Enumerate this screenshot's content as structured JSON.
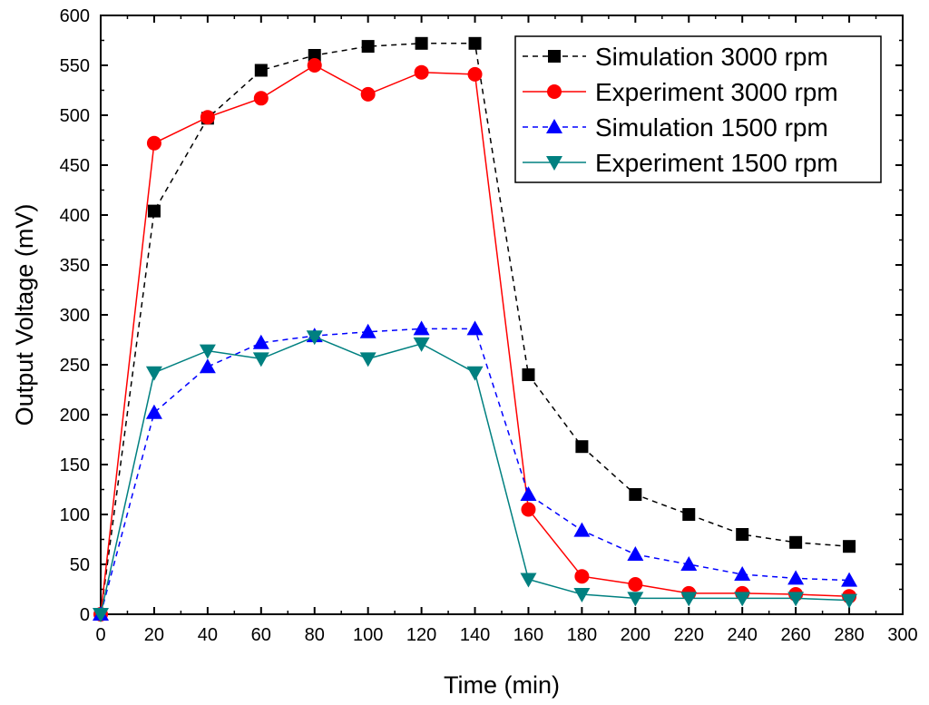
{
  "chart_data": {
    "type": "line",
    "title": "",
    "xlabel": "Time (min)",
    "ylabel": "Output Voltage (mV)",
    "xlim": [
      0,
      300
    ],
    "ylim": [
      0,
      600
    ],
    "xticks": [
      "0",
      "20",
      "40",
      "60",
      "80",
      "100",
      "120",
      "140",
      "160",
      "180",
      "200",
      "220",
      "240",
      "260",
      "280",
      "300"
    ],
    "yticks": [
      "0",
      "50",
      "100",
      "150",
      "200",
      "250",
      "300",
      "350",
      "400",
      "450",
      "500",
      "550",
      "600"
    ],
    "grid": false,
    "legend_position": "top-right",
    "x": [
      0,
      20,
      40,
      60,
      80,
      100,
      120,
      140,
      160,
      180,
      200,
      220,
      240,
      260,
      280
    ],
    "series": [
      {
        "name": "Simulation 3000 rpm",
        "color": "#000000",
        "line": "dashed",
        "marker": "square",
        "values": [
          0,
          404,
          497,
          545,
          560,
          569,
          572,
          572,
          240,
          168,
          120,
          100,
          80,
          72,
          68
        ]
      },
      {
        "name": "Experiment 3000 rpm",
        "color": "#ff0000",
        "line": "solid",
        "marker": "circle",
        "values": [
          0,
          472,
          498,
          517,
          550,
          521,
          543,
          541,
          105,
          38,
          30,
          21,
          21,
          20,
          18
        ]
      },
      {
        "name": "Simulation 1500 rpm",
        "color": "#0000ff",
        "line": "dashed",
        "marker": "triangle-up",
        "values": [
          0,
          202,
          248,
          272,
          279,
          283,
          286,
          286,
          120,
          84,
          60,
          50,
          40,
          36,
          34
        ]
      },
      {
        "name": "Experiment 1500 rpm",
        "color": "#008080",
        "line": "solid",
        "marker": "triangle-down",
        "values": [
          0,
          242,
          264,
          256,
          278,
          256,
          271,
          242,
          35,
          20,
          16,
          16,
          16,
          16,
          14
        ]
      }
    ]
  }
}
